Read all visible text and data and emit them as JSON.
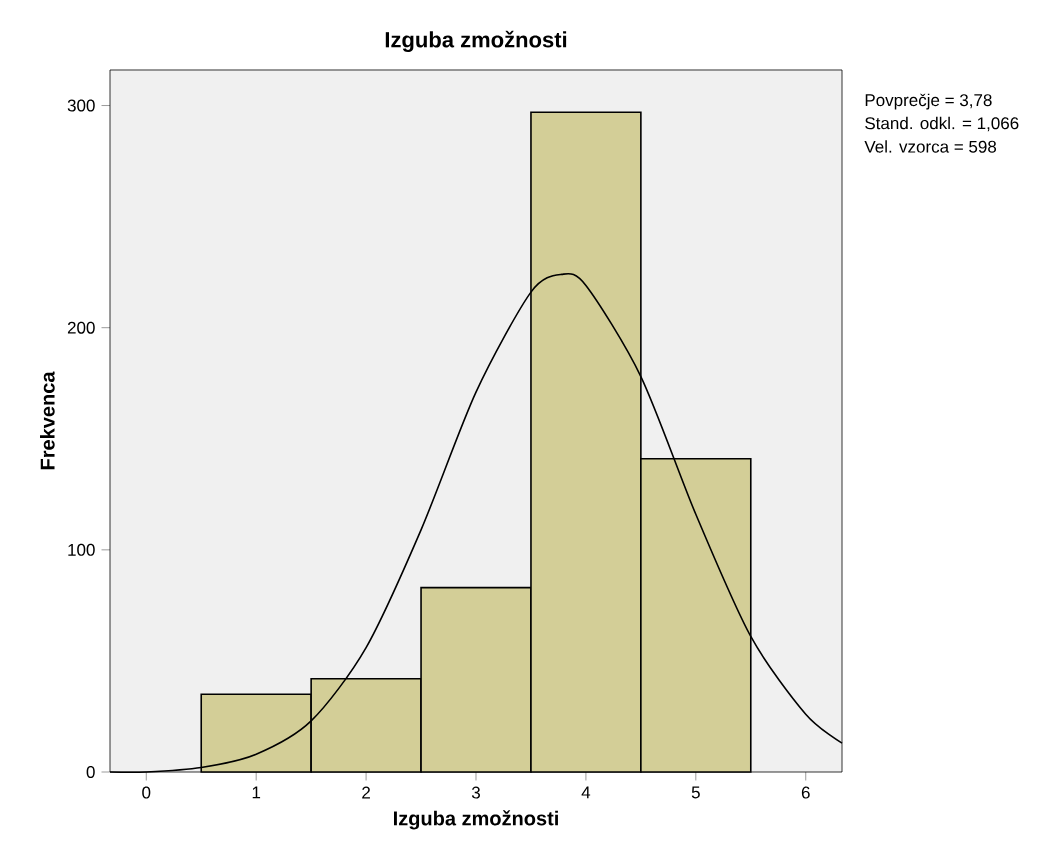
{
  "chart_data": {
    "type": "histogram",
    "title": "Izguba zmožnosti",
    "xlabel": "Izguba zmožnosti",
    "ylabel": "Frekvenca",
    "bins": [
      0.5,
      1.5,
      2.5,
      3.5,
      4.5,
      5.5
    ],
    "series": [
      {
        "color": "#d3ce97",
        "values": [
          35,
          42,
          83,
          297,
          141
        ]
      },
      {
        "type": "line",
        "color": "#000000",
        "x": [
          -0.33,
          0,
          0.5,
          1,
          1.5,
          2,
          2.5,
          3,
          3.5,
          3.78,
          4,
          4.5,
          5,
          5.5,
          6,
          6.33
        ],
        "values": [
          0,
          0,
          2,
          8,
          23,
          56,
          109,
          171,
          216,
          224,
          219,
          178,
          116,
          61,
          26,
          13
        ]
      }
    ],
    "xlim": [
      -0.33,
      6.33
    ],
    "ylim": [
      0,
      316
    ],
    "xticks": [
      0,
      1,
      2,
      3,
      4,
      5,
      6
    ],
    "yticks": [
      0,
      100,
      200,
      300
    ],
    "grid": false,
    "marker": "none",
    "annotations": [
      "Povprečje = 3,78",
      "Stand. odkl. = 1,066",
      "Vel. vzorca = 598"
    ]
  }
}
